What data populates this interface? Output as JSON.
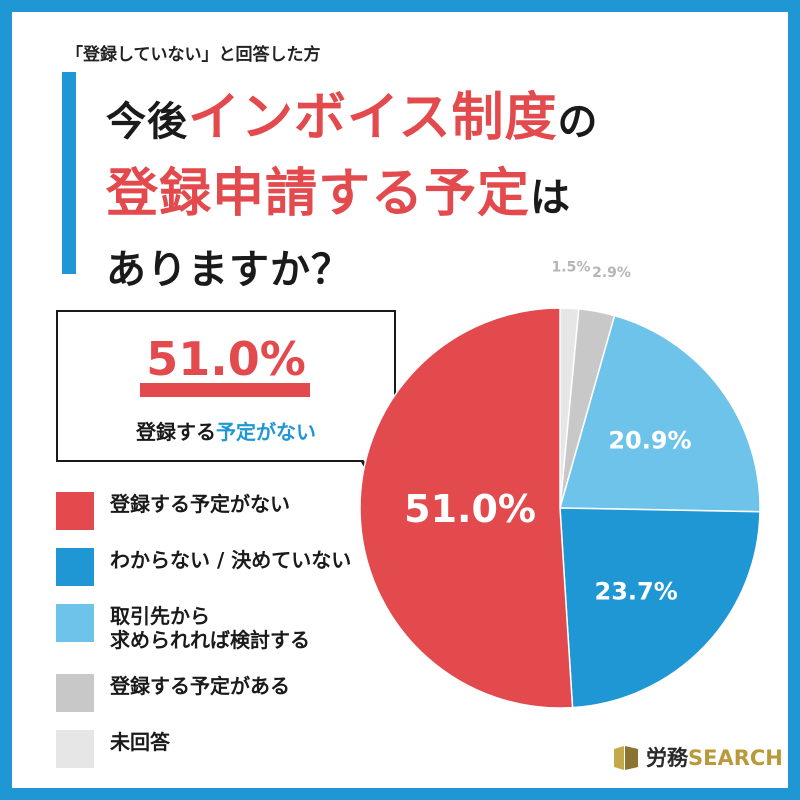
{
  "header": {
    "subtitle": "「登録していない」と回答した方",
    "title_line1_dark": "今後",
    "title_line1_red": "インボイス制度",
    "title_line1_tail": "の",
    "title_line2_red": "登録申請する予定",
    "title_line2_tail": "は",
    "title_line3": "ありますか？"
  },
  "callout": {
    "value": "51.0%",
    "text_plain": "登録する",
    "text_highlight": "予定がない"
  },
  "chart_data": {
    "type": "pie",
    "title": "今後インボイス制度の登録申請する予定はありますか？",
    "start_angle_deg": 0,
    "direction": "clockwise",
    "slices": [
      {
        "label": "未回答",
        "value": 1.5,
        "display": "1.5%",
        "color": "#e6e6e6"
      },
      {
        "label": "登録する予定がある",
        "value": 2.9,
        "display": "2.9%",
        "color": "#c8c8c8"
      },
      {
        "label": "取引先から\n求められれば検討する",
        "value": 20.9,
        "display": "20.9%",
        "color": "#6ec3ea"
      },
      {
        "label": "わからない / 決めていない",
        "value": 23.7,
        "display": "23.7%",
        "color": "#1f97d4"
      },
      {
        "label": "登録する予定がない",
        "value": 51.0,
        "display": "51.0%",
        "color": "#e34a4e"
      }
    ]
  },
  "legend": [
    {
      "label": "登録する予定がない",
      "color": "#e34a4e"
    },
    {
      "label": "わからない / 決めていない",
      "color": "#1f97d4"
    },
    {
      "label": "取引先から\n求められれば検討する",
      "color": "#6ec3ea"
    },
    {
      "label": "登録する予定がある",
      "color": "#c8c8c8"
    },
    {
      "label": "未回答",
      "color": "#e6e6e6"
    }
  ],
  "logo": {
    "text_dark": "労務",
    "text_gold": "SEARCH"
  },
  "colors": {
    "frame": "#1f97d4",
    "accent_red": "#e34a4e",
    "accent_blue": "#1f97d4"
  }
}
